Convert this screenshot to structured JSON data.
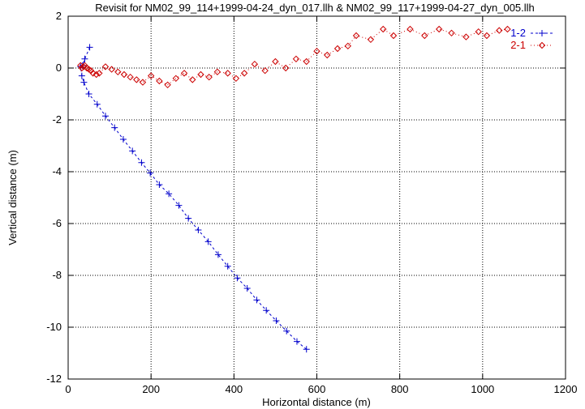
{
  "chart_data": {
    "type": "scatter",
    "title": "Revisit for NM02_99_114+1999-04-24_dyn_017.llh & NM02_99_117+1999-04-27_dyn_005.llh",
    "xlabel": "Horizontal distance (m)",
    "ylabel": "Vertical distance (m)",
    "xlim": [
      0,
      1200
    ],
    "ylim": [
      -12,
      2
    ],
    "xticks": [
      0,
      200,
      400,
      600,
      800,
      1000,
      1200
    ],
    "yticks": [
      -12,
      -10,
      -8,
      -6,
      -4,
      -2,
      0,
      2
    ],
    "grid": true,
    "legend_position": "top-right",
    "series": [
      {
        "name": "1-2",
        "color": "#0000cc",
        "marker": "plus",
        "line": "dashed",
        "points": [
          [
            52,
            0.8
          ],
          [
            40,
            0.35
          ],
          [
            35,
            0.1
          ],
          [
            30,
            0.05
          ],
          [
            33,
            -0.3
          ],
          [
            38,
            -0.55
          ],
          [
            50,
            -1.0
          ],
          [
            70,
            -1.4
          ],
          [
            90,
            -1.85
          ],
          [
            112,
            -2.3
          ],
          [
            133,
            -2.75
          ],
          [
            155,
            -3.2
          ],
          [
            177,
            -3.65
          ],
          [
            198,
            -4.05
          ],
          [
            220,
            -4.5
          ],
          [
            243,
            -4.85
          ],
          [
            267,
            -5.3
          ],
          [
            290,
            -5.8
          ],
          [
            314,
            -6.25
          ],
          [
            338,
            -6.7
          ],
          [
            362,
            -7.2
          ],
          [
            385,
            -7.65
          ],
          [
            408,
            -8.1
          ],
          [
            432,
            -8.5
          ],
          [
            455,
            -8.95
          ],
          [
            478,
            -9.35
          ],
          [
            502,
            -9.75
          ],
          [
            527,
            -10.15
          ],
          [
            552,
            -10.55
          ],
          [
            575,
            -10.85
          ]
        ]
      },
      {
        "name": "2-1",
        "color": "#cc0000",
        "marker": "diamond",
        "line": "dotted",
        "points": [
          [
            30,
            0.1
          ],
          [
            33,
            0.0
          ],
          [
            37,
            0.05
          ],
          [
            40,
            0.1
          ],
          [
            45,
            0.0
          ],
          [
            50,
            -0.05
          ],
          [
            55,
            -0.1
          ],
          [
            60,
            -0.2
          ],
          [
            68,
            -0.25
          ],
          [
            75,
            -0.2
          ],
          [
            90,
            0.05
          ],
          [
            105,
            -0.05
          ],
          [
            120,
            -0.15
          ],
          [
            135,
            -0.25
          ],
          [
            150,
            -0.35
          ],
          [
            165,
            -0.45
          ],
          [
            180,
            -0.55
          ],
          [
            200,
            -0.3
          ],
          [
            220,
            -0.5
          ],
          [
            240,
            -0.65
          ],
          [
            260,
            -0.4
          ],
          [
            280,
            -0.2
          ],
          [
            300,
            -0.45
          ],
          [
            320,
            -0.25
          ],
          [
            340,
            -0.35
          ],
          [
            360,
            -0.15
          ],
          [
            385,
            -0.2
          ],
          [
            405,
            -0.4
          ],
          [
            425,
            -0.2
          ],
          [
            450,
            0.15
          ],
          [
            475,
            -0.1
          ],
          [
            500,
            0.25
          ],
          [
            525,
            0.0
          ],
          [
            550,
            0.35
          ],
          [
            575,
            0.25
          ],
          [
            600,
            0.65
          ],
          [
            625,
            0.5
          ],
          [
            650,
            0.75
          ],
          [
            675,
            0.85
          ],
          [
            695,
            1.25
          ],
          [
            730,
            1.1
          ],
          [
            760,
            1.5
          ],
          [
            785,
            1.25
          ],
          [
            825,
            1.5
          ],
          [
            860,
            1.25
          ],
          [
            895,
            1.5
          ],
          [
            925,
            1.35
          ],
          [
            960,
            1.2
          ],
          [
            990,
            1.4
          ],
          [
            1010,
            1.25
          ],
          [
            1040,
            1.45
          ],
          [
            1060,
            1.5
          ]
        ]
      }
    ]
  }
}
